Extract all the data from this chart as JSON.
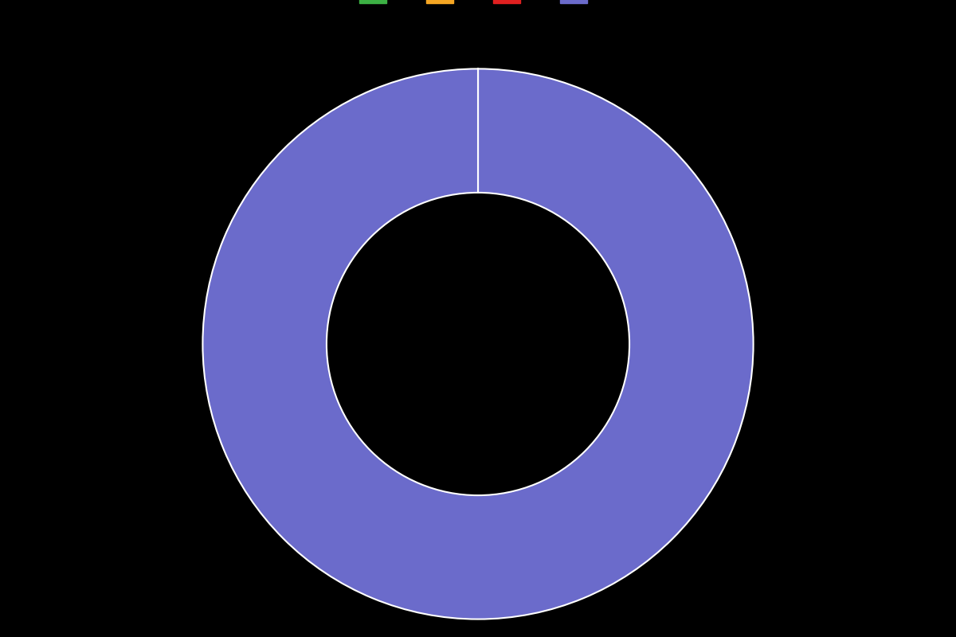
{
  "slices": [
    0.001,
    0.001,
    0.001,
    99.997
  ],
  "colors": [
    "#3cb044",
    "#f5a623",
    "#e02020",
    "#6b6bcb"
  ],
  "legend_colors": [
    "#3cb044",
    "#f5a623",
    "#e02020",
    "#6b6bcb"
  ],
  "legend_labels": [
    "",
    "",
    "",
    ""
  ],
  "background_color": "#000000",
  "wedge_linewidth": 1.5,
  "wedge_edgecolor": "#ffffff",
  "donut_width": 0.45,
  "startangle": 90
}
